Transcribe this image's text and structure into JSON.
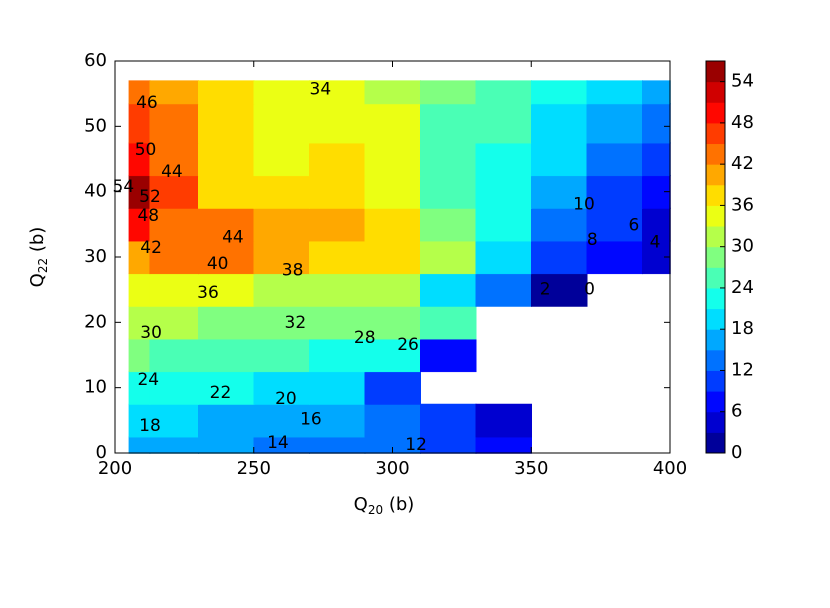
{
  "chart_data": {
    "type": "contour",
    "xlabel": [
      "Q",
      "20",
      " (b)"
    ],
    "ylabel": [
      "Q",
      "22",
      " (b)"
    ],
    "x": [
      205,
      220,
      240,
      260,
      280,
      300,
      320,
      340,
      360,
      380,
      400
    ],
    "y": [
      0,
      5,
      10,
      15,
      20,
      25,
      30,
      35,
      40,
      45,
      50,
      57
    ],
    "z": [
      [
        17,
        16,
        15,
        14,
        13,
        12,
        10,
        6,
        null,
        null,
        null
      ],
      [
        19,
        18,
        17,
        16,
        15,
        14,
        11,
        4,
        null,
        null,
        null
      ],
      [
        23,
        22,
        21,
        20,
        19,
        10,
        null,
        null,
        null,
        null,
        null
      ],
      [
        27,
        26,
        25,
        24,
        23,
        22,
        8,
        null,
        null,
        null,
        null
      ],
      [
        31,
        30,
        29,
        28,
        27,
        27,
        24,
        null,
        null,
        null,
        null
      ],
      [
        35,
        34,
        33,
        32,
        31,
        30,
        20,
        12,
        2,
        null,
        null
      ],
      [
        41,
        42,
        42,
        40,
        38,
        36,
        30,
        18,
        10,
        6,
        3
      ],
      [
        48,
        44,
        42,
        41,
        40,
        38,
        28,
        21,
        14,
        9,
        5
      ],
      [
        54,
        46,
        38,
        36,
        38,
        34,
        26,
        22,
        16,
        11,
        7
      ],
      [
        50,
        44,
        38,
        33,
        36,
        34,
        25,
        22,
        18,
        14,
        10
      ],
      [
        46,
        42,
        37,
        33,
        33,
        33,
        26,
        24,
        20,
        17,
        14
      ],
      [
        42,
        40,
        37,
        35,
        34,
        32,
        28,
        25,
        22,
        19,
        17
      ]
    ],
    "colormap": "jet",
    "level_step": 3,
    "xlim": [
      200,
      400
    ],
    "xticks": [
      200,
      250,
      300,
      350,
      400
    ],
    "ylim": [
      0,
      60
    ],
    "yticks": [
      0,
      10,
      20,
      30,
      40,
      50,
      60
    ],
    "zlim": [
      0,
      57
    ],
    "zticks": [
      0,
      6,
      12,
      18,
      24,
      30,
      36,
      42,
      48,
      54
    ],
    "contour_labels": [
      {
        "value": 34,
        "x": 274,
        "y": 55.6
      },
      {
        "value": 46,
        "x": 211.5,
        "y": 53.6
      },
      {
        "value": 50,
        "x": 211,
        "y": 46.4
      },
      {
        "value": 44,
        "x": 220.5,
        "y": 43
      },
      {
        "value": 54,
        "x": 203,
        "y": 40.7
      },
      {
        "value": 52,
        "x": 212.6,
        "y": 39.2
      },
      {
        "value": 48,
        "x": 212,
        "y": 36.3
      },
      {
        "value": 44,
        "x": 242.5,
        "y": 33
      },
      {
        "value": 42,
        "x": 213,
        "y": 31.4
      },
      {
        "value": 40,
        "x": 237,
        "y": 28.9
      },
      {
        "value": 38,
        "x": 264,
        "y": 27.9
      },
      {
        "value": 36,
        "x": 233.5,
        "y": 24.5
      },
      {
        "value": 32,
        "x": 265,
        "y": 19.9
      },
      {
        "value": 30,
        "x": 213,
        "y": 18.4
      },
      {
        "value": 28,
        "x": 290,
        "y": 17.6
      },
      {
        "value": 26,
        "x": 305.6,
        "y": 16.5
      },
      {
        "value": 24,
        "x": 212,
        "y": 11.2
      },
      {
        "value": 22,
        "x": 238,
        "y": 9.2
      },
      {
        "value": 20,
        "x": 261.6,
        "y": 8.3
      },
      {
        "value": 16,
        "x": 270.6,
        "y": 5.1
      },
      {
        "value": 18,
        "x": 212.6,
        "y": 4.1
      },
      {
        "value": 14,
        "x": 258.7,
        "y": 1.5
      },
      {
        "value": 12,
        "x": 308.5,
        "y": 1.2
      },
      {
        "value": 10,
        "x": 369,
        "y": 38
      },
      {
        "value": 8,
        "x": 372,
        "y": 32.6
      },
      {
        "value": 6,
        "x": 387,
        "y": 34.8
      },
      {
        "value": 4,
        "x": 394.6,
        "y": 32.2
      },
      {
        "value": 2,
        "x": 355,
        "y": 25
      },
      {
        "value": 0,
        "x": 371,
        "y": 25
      }
    ]
  }
}
